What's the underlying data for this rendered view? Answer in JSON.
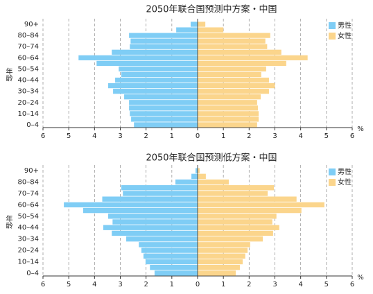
{
  "chart_data": [
    {
      "type": "pyramid",
      "title": "2050年联合国预测中方案・中国",
      "y_label": "年龄",
      "x_unit": "%",
      "categories": [
        "0–4",
        null,
        "10–14",
        null,
        "20–24",
        null,
        "30–34",
        null,
        "40–44",
        null,
        "50–54",
        null,
        "60–64",
        null,
        "70–74",
        null,
        "80–84",
        null,
        "90+"
      ],
      "series": [
        {
          "name": "男性",
          "color": "#7fcdf5",
          "side": "left",
          "values": [
            2.47,
            2.58,
            2.63,
            2.66,
            2.66,
            2.85,
            3.28,
            3.47,
            3.2,
            2.96,
            3.06,
            3.92,
            4.62,
            3.33,
            2.63,
            2.6,
            2.66,
            0.83,
            0.27
          ]
        },
        {
          "name": "女性",
          "color": "#fbd58c",
          "side": "right",
          "values": [
            2.31,
            2.37,
            2.37,
            2.34,
            2.31,
            2.45,
            2.77,
            3.0,
            2.77,
            2.47,
            2.66,
            3.44,
            4.27,
            3.25,
            2.7,
            2.63,
            2.82,
            1.0,
            0.3
          ]
        }
      ],
      "xlim": [
        -6,
        6
      ],
      "xticks": [
        {
          "value": -6,
          "label": "6"
        },
        {
          "value": -5,
          "label": "5"
        },
        {
          "value": -4,
          "label": "4"
        },
        {
          "value": -3,
          "label": "3"
        },
        {
          "value": -2,
          "label": "2"
        },
        {
          "value": -1,
          "label": "1"
        },
        0,
        1,
        2,
        3,
        4,
        5,
        6
      ],
      "grid": true,
      "legend": "top-right"
    },
    {
      "type": "pyramid",
      "title": "2050年联合国预测低方案・中国",
      "y_label": "年龄",
      "x_unit": "%",
      "categories": [
        "0–4",
        null,
        "10–14",
        null,
        "20–24",
        null,
        "30–34",
        null,
        "40–44",
        null,
        "50–54",
        null,
        "60–64",
        null,
        "70–74",
        null,
        "80–84",
        null,
        "90+"
      ],
      "series": [
        {
          "name": "男性",
          "color": "#7fcdf5",
          "side": "left",
          "values": [
            1.67,
            1.85,
            2.02,
            2.1,
            2.18,
            2.28,
            2.77,
            3.33,
            3.66,
            3.3,
            3.47,
            4.44,
            5.19,
            3.7,
            2.9,
            2.96,
            0.86,
            0.24,
            0.08
          ]
        },
        {
          "name": "女性",
          "color": "#fbd58c",
          "side": "right",
          "values": [
            1.48,
            1.64,
            1.75,
            1.85,
            1.94,
            2.04,
            2.53,
            2.93,
            3.17,
            2.9,
            3.06,
            4.03,
            4.92,
            3.84,
            2.72,
            2.96,
            1.21,
            0.32,
            0.08
          ]
        }
      ],
      "xlim": [
        -6,
        6
      ],
      "xticks": [
        {
          "value": -6,
          "label": "6"
        },
        {
          "value": -5,
          "label": "5"
        },
        {
          "value": -4,
          "label": "4"
        },
        {
          "value": -3,
          "label": "3"
        },
        {
          "value": -2,
          "label": "2"
        },
        {
          "value": -1,
          "label": "1"
        },
        0,
        1,
        2,
        3,
        4,
        5,
        6
      ],
      "grid": true,
      "legend": "top-right"
    }
  ]
}
